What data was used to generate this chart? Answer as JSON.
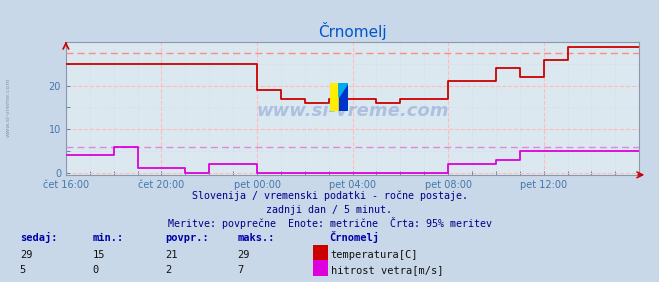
{
  "title": "Črnomelj",
  "bg_color": "#c8d8e8",
  "plot_bg_color": "#dce8f0",
  "title_color": "#0055cc",
  "axis_label_color": "#4477aa",
  "grid_color_major": "#ffbbbb",
  "grid_color_minor": "#ccddee",
  "xlabel_ticks": [
    "čet 16:00",
    "čet 20:00",
    "pet 00:00",
    "pet 04:00",
    "pet 08:00",
    "pet 12:00"
  ],
  "xlim": [
    0,
    288
  ],
  "ylim": [
    -0.5,
    30
  ],
  "yticks": [
    0,
    10,
    20
  ],
  "temp_color": "#cc0000",
  "wind_color": "#dd00dd",
  "dashed_temp_color": "#ff8888",
  "dashed_wind_color": "#dd88dd",
  "subtitle1": "Slovenija / vremenski podatki - ročne postaje.",
  "subtitle2": "zadnji dan / 5 minut.",
  "subtitle3": "Meritve: povprečne  Enote: metrične  Črta: 95% meritev",
  "subtitle_color": "#000088",
  "legend_header": "Črnomelj",
  "watermark": "www.si-vreme.com",
  "footer_labels": [
    "sedaj:",
    "min.:",
    "povpr.:",
    "maks.:"
  ],
  "footer_values_temp": [
    29,
    15,
    21,
    29
  ],
  "footer_values_wind": [
    5,
    0,
    2,
    7
  ],
  "footer_series": [
    "temperatura[C]",
    "hitrost vetra[m/s]"
  ],
  "footer_series_colors": [
    "#cc0000",
    "#dd00dd"
  ],
  "n_points": 288,
  "temp_95pct": 27.5,
  "wind_95pct": 6.0,
  "temp_data_x": [
    0,
    48,
    48,
    96,
    96,
    108,
    108,
    120,
    120,
    132,
    132,
    156,
    156,
    168,
    168,
    192,
    192,
    216,
    216,
    228,
    228,
    240,
    240,
    252,
    252,
    264,
    264,
    276,
    276,
    288
  ],
  "temp_data_y": [
    25,
    25,
    25,
    25,
    19,
    19,
    17,
    17,
    16,
    16,
    17,
    17,
    16,
    16,
    17,
    17,
    21,
    21,
    24,
    24,
    22,
    22,
    26,
    26,
    29,
    29,
    29,
    29,
    29,
    29
  ],
  "wind_data_x": [
    0,
    24,
    24,
    36,
    36,
    60,
    60,
    72,
    72,
    96,
    96,
    120,
    120,
    192,
    192,
    216,
    216,
    228,
    228,
    240,
    240,
    276,
    276,
    288
  ],
  "wind_data_y": [
    4,
    4,
    6,
    6,
    1,
    1,
    0,
    0,
    2,
    2,
    0,
    0,
    0,
    0,
    2,
    2,
    3,
    3,
    5,
    5,
    5,
    5,
    5,
    5
  ]
}
